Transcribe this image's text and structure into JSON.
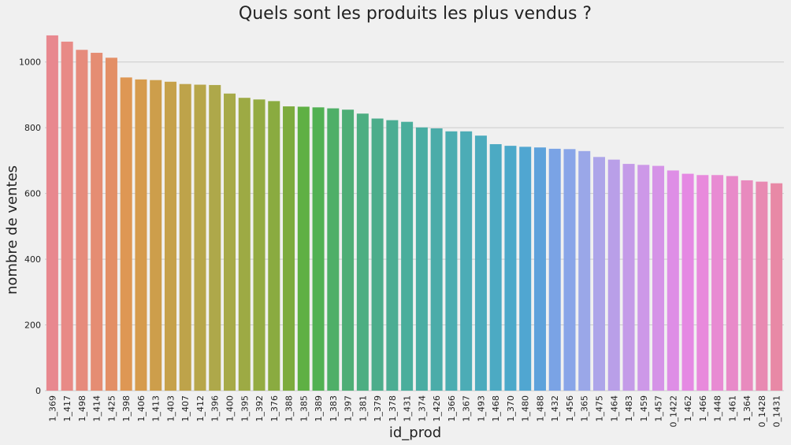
{
  "chart_data": {
    "type": "bar",
    "title": "Quels sont les produits les plus vendus ?",
    "xlabel": "id_prod",
    "ylabel": "nombre de ventes",
    "ylim": [
      0,
      1100
    ],
    "yticks": [
      0,
      200,
      400,
      600,
      800,
      1000
    ],
    "grid": true,
    "categories": [
      "1_369",
      "1_417",
      "1_498",
      "1_414",
      "1_425",
      "1_398",
      "1_406",
      "1_413",
      "1_403",
      "1_407",
      "1_412",
      "1_396",
      "1_400",
      "1_395",
      "1_392",
      "1_376",
      "1_388",
      "1_385",
      "1_389",
      "1_383",
      "1_397",
      "1_381",
      "1_379",
      "1_378",
      "1_431",
      "1_374",
      "1_426",
      "1_366",
      "1_367",
      "1_493",
      "1_468",
      "1_370",
      "1_480",
      "1_488",
      "1_432",
      "1_456",
      "1_365",
      "1_475",
      "1_464",
      "1_483",
      "1_459",
      "1_457",
      "0_1422",
      "1_462",
      "1_466",
      "1_448",
      "1_461",
      "1_364",
      "0_1428",
      "0_1431"
    ],
    "values": [
      1081,
      1062,
      1037,
      1028,
      1013,
      953,
      947,
      945,
      940,
      933,
      931,
      930,
      904,
      891,
      886,
      881,
      865,
      864,
      862,
      859,
      855,
      843,
      828,
      823,
      818,
      801,
      798,
      789,
      789,
      776,
      750,
      745,
      742,
      740,
      736,
      735,
      729,
      711,
      703,
      690,
      687,
      684,
      670,
      660,
      656,
      656,
      653,
      640,
      636,
      631
    ],
    "colors": [
      "#e8888f",
      "#e88a86",
      "#e68b7c",
      "#e58d73",
      "#e38f66",
      "#de9754",
      "#d69b4d",
      "#cd9e4b",
      "#c6a14a",
      "#bea34a",
      "#b7a64a",
      "#aea84a",
      "#a7aa48",
      "#9daa44",
      "#94ab42",
      "#8aab40",
      "#7dab3e",
      "#5fb044",
      "#52b153",
      "#4faf68",
      "#4eae76",
      "#4dae82",
      "#4cad8b",
      "#4cad93",
      "#4aae9c",
      "#4aada3",
      "#4baca9",
      "#4badb1",
      "#4cacb6",
      "#4cabbd",
      "#4caac3",
      "#4ca9ca",
      "#50a6d1",
      "#5ea2db",
      "#7aa3e5",
      "#89a5e8",
      "#9aa7e8",
      "#ada5e9",
      "#b99fe8",
      "#c49be8",
      "#cd98e8",
      "#d593e7",
      "#de8ee6",
      "#e589e3",
      "#e88adc",
      "#e88bd3",
      "#e88ac9",
      "#e88abe",
      "#e88ab2",
      "#e889a6"
    ]
  }
}
